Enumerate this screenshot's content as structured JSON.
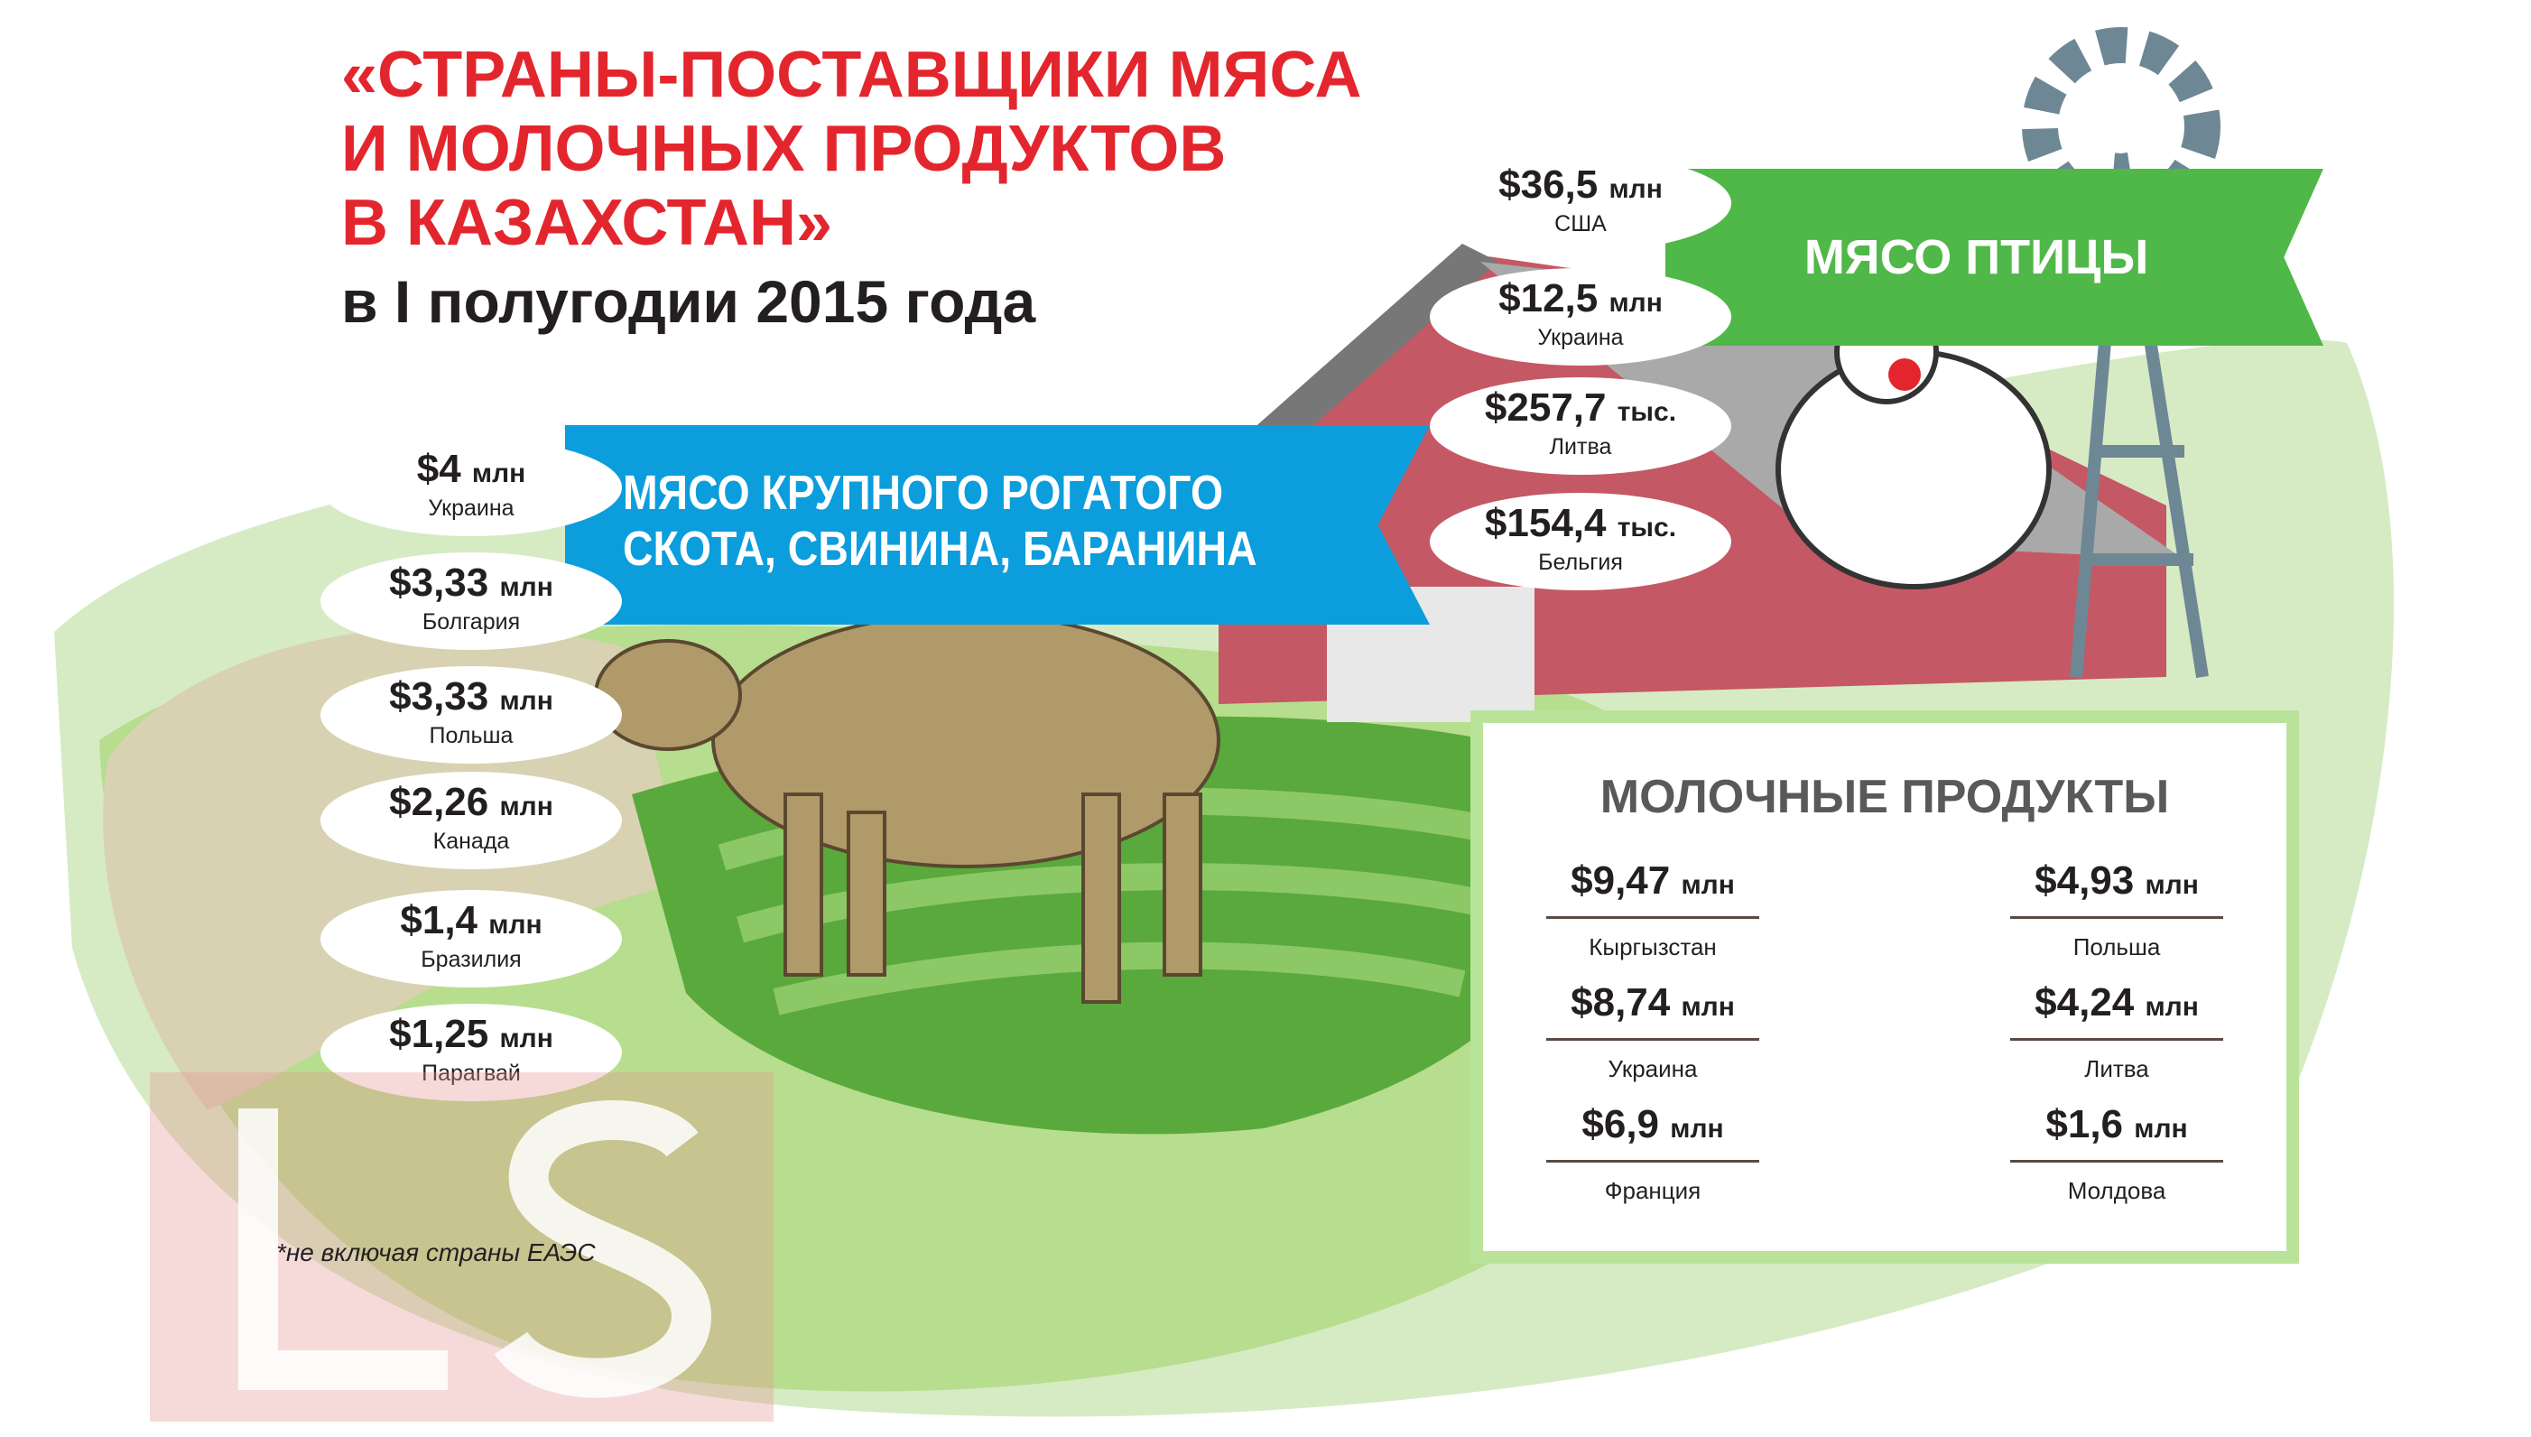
{
  "title": {
    "lines": [
      "«СТРАНЫ-ПОСТАВЩИКИ МЯСА",
      "И МОЛОЧНЫХ ПРОДУКТОВ",
      "В КАЗАХСТАН»"
    ],
    "subtitle": "в I полугодии 2015 года"
  },
  "beef": {
    "label_line1": "МЯСО КРУПНОГО РОГАТОГО",
    "label_line2": "СКОТА, СВИНИНА, БАРАНИНА",
    "items": [
      {
        "value": "$4",
        "unit": "млн",
        "country": "Украина"
      },
      {
        "value": "$3,33",
        "unit": "млн",
        "country": "Болгария"
      },
      {
        "value": "$3,33",
        "unit": "млн",
        "country": "Польша"
      },
      {
        "value": "$2,26",
        "unit": "млн",
        "country": "Канада"
      },
      {
        "value": "$1,4",
        "unit": "млн",
        "country": "Бразилия"
      },
      {
        "value": "$1,25",
        "unit": "млн",
        "country": "Парагвай"
      }
    ]
  },
  "poultry": {
    "label": "МЯСО ПТИЦЫ",
    "items": [
      {
        "value": "$36,5",
        "unit": "млн",
        "country": "США"
      },
      {
        "value": "$12,5",
        "unit": "млн",
        "country": "Украина"
      },
      {
        "value": "$257,7",
        "unit": "тыс.",
        "country": "Литва"
      },
      {
        "value": "$154,4",
        "unit": "тыс.",
        "country": "Бельгия"
      }
    ]
  },
  "dairy": {
    "label": "МОЛОЧНЫЕ ПРОДУКТЫ",
    "items": [
      {
        "value": "$9,47",
        "unit": "млн",
        "country": "Кыргызстан"
      },
      {
        "value": "$8,74",
        "unit": "млн",
        "country": "Украина"
      },
      {
        "value": "$6,9",
        "unit": "млн",
        "country": "Франция"
      },
      {
        "value": "$4,93",
        "unit": "млн",
        "country": "Польша"
      },
      {
        "value": "$4,24",
        "unit": "млн",
        "country": "Литва"
      },
      {
        "value": "$1,6",
        "unit": "млн",
        "country": "Молдова"
      }
    ]
  },
  "footnote": "*не включая страны ЕАЭС",
  "watermark": "LS",
  "colors": {
    "title_red": "#e3262d",
    "beef_blue": "#0b9ddc",
    "poultry_green": "#4fb848",
    "dairy_border": "#b9e39a"
  }
}
